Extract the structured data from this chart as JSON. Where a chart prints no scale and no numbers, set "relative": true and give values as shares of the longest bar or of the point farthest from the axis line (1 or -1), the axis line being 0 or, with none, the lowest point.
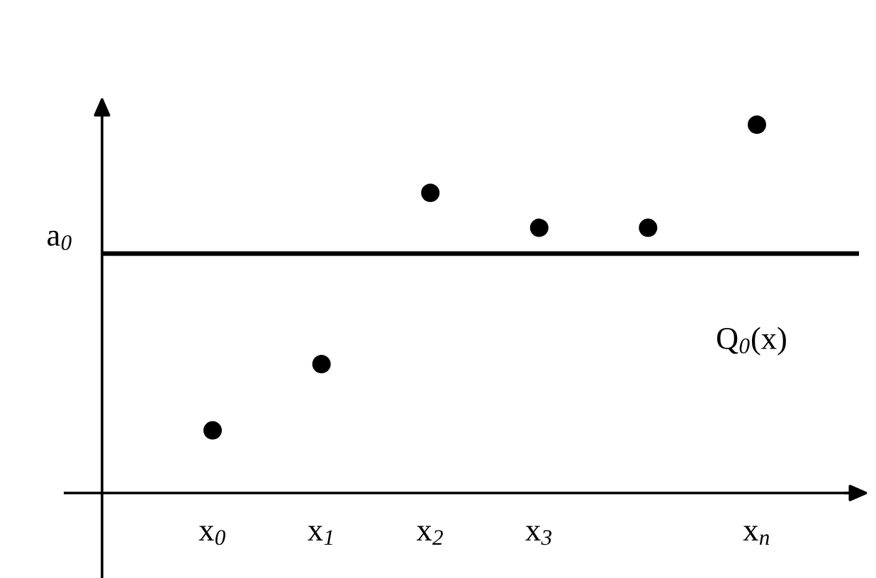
{
  "chart_data": {
    "type": "scatter",
    "relative": true,
    "categories": [
      "x$_{0}$",
      "x$_{1}$",
      "x$_{2}$",
      "x$_{3}$",
      null,
      "x$_{n}$"
    ],
    "series": [
      {
        "color": "#000000",
        "values": [
          0.17,
          0.35,
          0.815,
          0.72,
          0.72,
          1
        ]
      }
    ],
    "ref_lines": [
      {
        "axis": "y",
        "value": 0.65,
        "label": "Q$_{0}$(x)",
        "color": "#000000",
        "line_style": "solid"
      }
    ],
    "annotations": [
      "a$_{0}$"
    ],
    "marker": "circle",
    "grid": false,
    "legend": false
  }
}
